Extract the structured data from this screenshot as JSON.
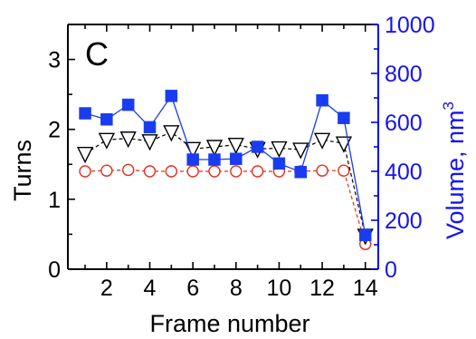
{
  "chart_data": {
    "type": "line",
    "panel_label": "C",
    "xlabel": "Frame number",
    "ylabel": "Turns",
    "y2label": "Volume, nm",
    "y2label_superscript": "3",
    "xlim": [
      0.2,
      14.6
    ],
    "ylim": [
      0,
      3.5
    ],
    "y2lim": [
      0,
      1000
    ],
    "x_ticks": [
      2,
      4,
      6,
      8,
      10,
      12,
      14
    ],
    "y_ticks": [
      0,
      1,
      2,
      3
    ],
    "y2_ticks": [
      0,
      200,
      400,
      600,
      800,
      1000
    ],
    "grid": false,
    "legend": "none",
    "x": [
      1,
      2,
      3,
      4,
      5,
      6,
      7,
      8,
      9,
      10,
      11,
      12,
      13,
      14
    ],
    "series": [
      {
        "axis": "left",
        "marker": "triangle-down-open",
        "color": "#000000",
        "line_style": "dashed",
        "values": [
          1.65,
          1.85,
          1.87,
          1.83,
          1.96,
          1.72,
          1.75,
          1.78,
          1.72,
          1.73,
          1.71,
          1.85,
          1.8,
          0.48
        ]
      },
      {
        "axis": "left",
        "marker": "circle-open",
        "color": "#e0301e",
        "line_style": "dashed",
        "values": [
          1.4,
          1.41,
          1.42,
          1.4,
          1.4,
          1.4,
          1.4,
          1.4,
          1.4,
          1.4,
          1.4,
          1.41,
          1.41,
          0.36
        ]
      },
      {
        "axis": "right",
        "marker": "square-filled",
        "color": "#1a3cf0",
        "line_style": "solid",
        "values": [
          637,
          612,
          672,
          580,
          708,
          448,
          448,
          451,
          500,
          432,
          397,
          690,
          618,
          140
        ]
      }
    ]
  }
}
